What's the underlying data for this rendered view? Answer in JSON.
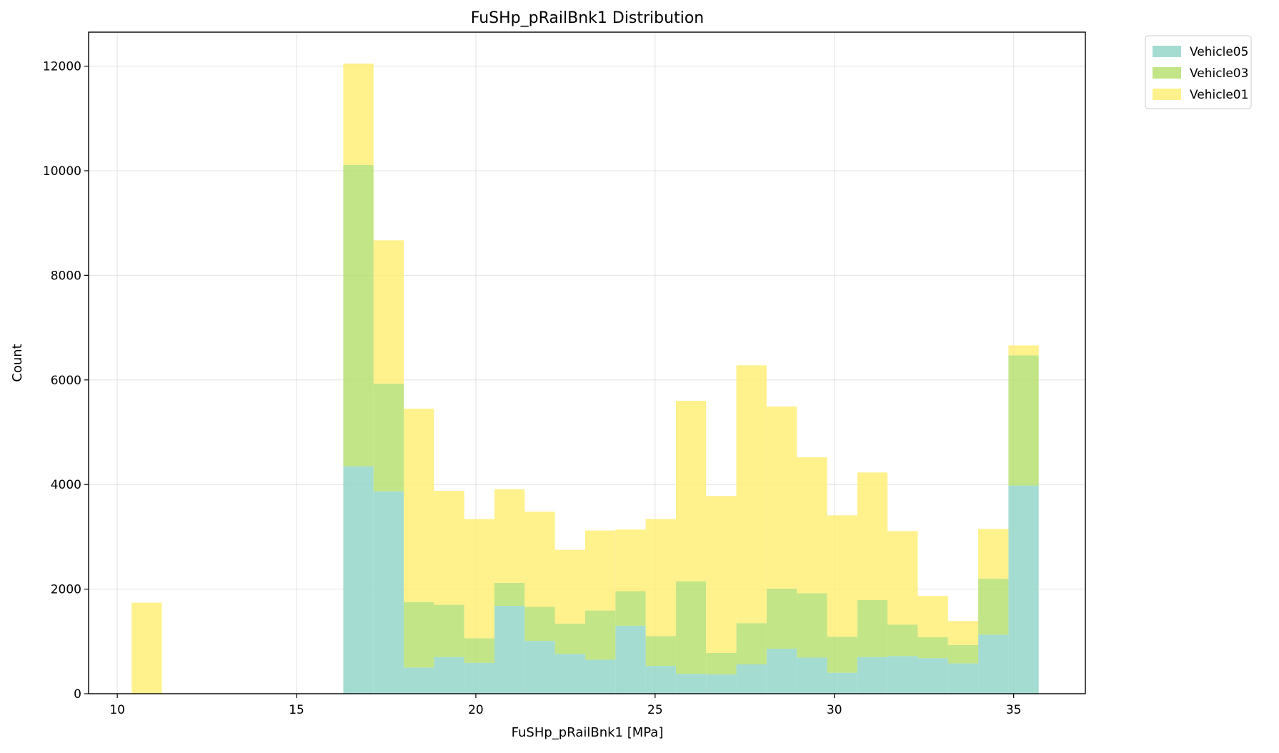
{
  "chart_data": {
    "type": "histogram",
    "stacked": true,
    "title": "FuSHp_pRailBnk1 Distribution",
    "xlabel": "FuSHp_pRailBnk1 [MPa]",
    "ylabel": "Count",
    "xlim": [
      9.2,
      37.0
    ],
    "ylim": [
      0,
      12650
    ],
    "xticks": [
      10,
      15,
      20,
      25,
      30,
      35
    ],
    "yticks": [
      0,
      2000,
      4000,
      6000,
      8000,
      10000,
      12000
    ],
    "grid": true,
    "legend_position": "outside-top-right",
    "bin_start": 10.4,
    "bin_width": 0.8433,
    "bin_count": 30,
    "series": [
      {
        "name": "Vehicle05",
        "color": "#8dd3c7",
        "values": [
          0,
          0,
          0,
          0,
          0,
          0,
          0,
          4350,
          3870,
          500,
          700,
          590,
          1680,
          1010,
          760,
          650,
          1300,
          530,
          380,
          370,
          560,
          860,
          690,
          400,
          700,
          720,
          680,
          580,
          1130,
          3980
        ]
      },
      {
        "name": "Vehicle03",
        "color": "#b3de69",
        "values": [
          0,
          0,
          0,
          0,
          0,
          0,
          0,
          5760,
          2060,
          1250,
          1000,
          470,
          440,
          650,
          580,
          940,
          660,
          570,
          1770,
          410,
          790,
          1150,
          1230,
          690,
          1090,
          600,
          400,
          350,
          1070,
          2490
        ]
      },
      {
        "name": "Vehicle01",
        "color": "#ffed6f",
        "values": [
          1740,
          0,
          0,
          0,
          0,
          0,
          0,
          1940,
          2740,
          3700,
          2180,
          2280,
          1790,
          1820,
          1410,
          1530,
          1180,
          2240,
          3450,
          3000,
          4930,
          3480,
          2600,
          2320,
          2440,
          1790,
          790,
          460,
          950,
          190
        ]
      }
    ],
    "legend_order": [
      "Vehicle05",
      "Vehicle03",
      "Vehicle01"
    ]
  }
}
